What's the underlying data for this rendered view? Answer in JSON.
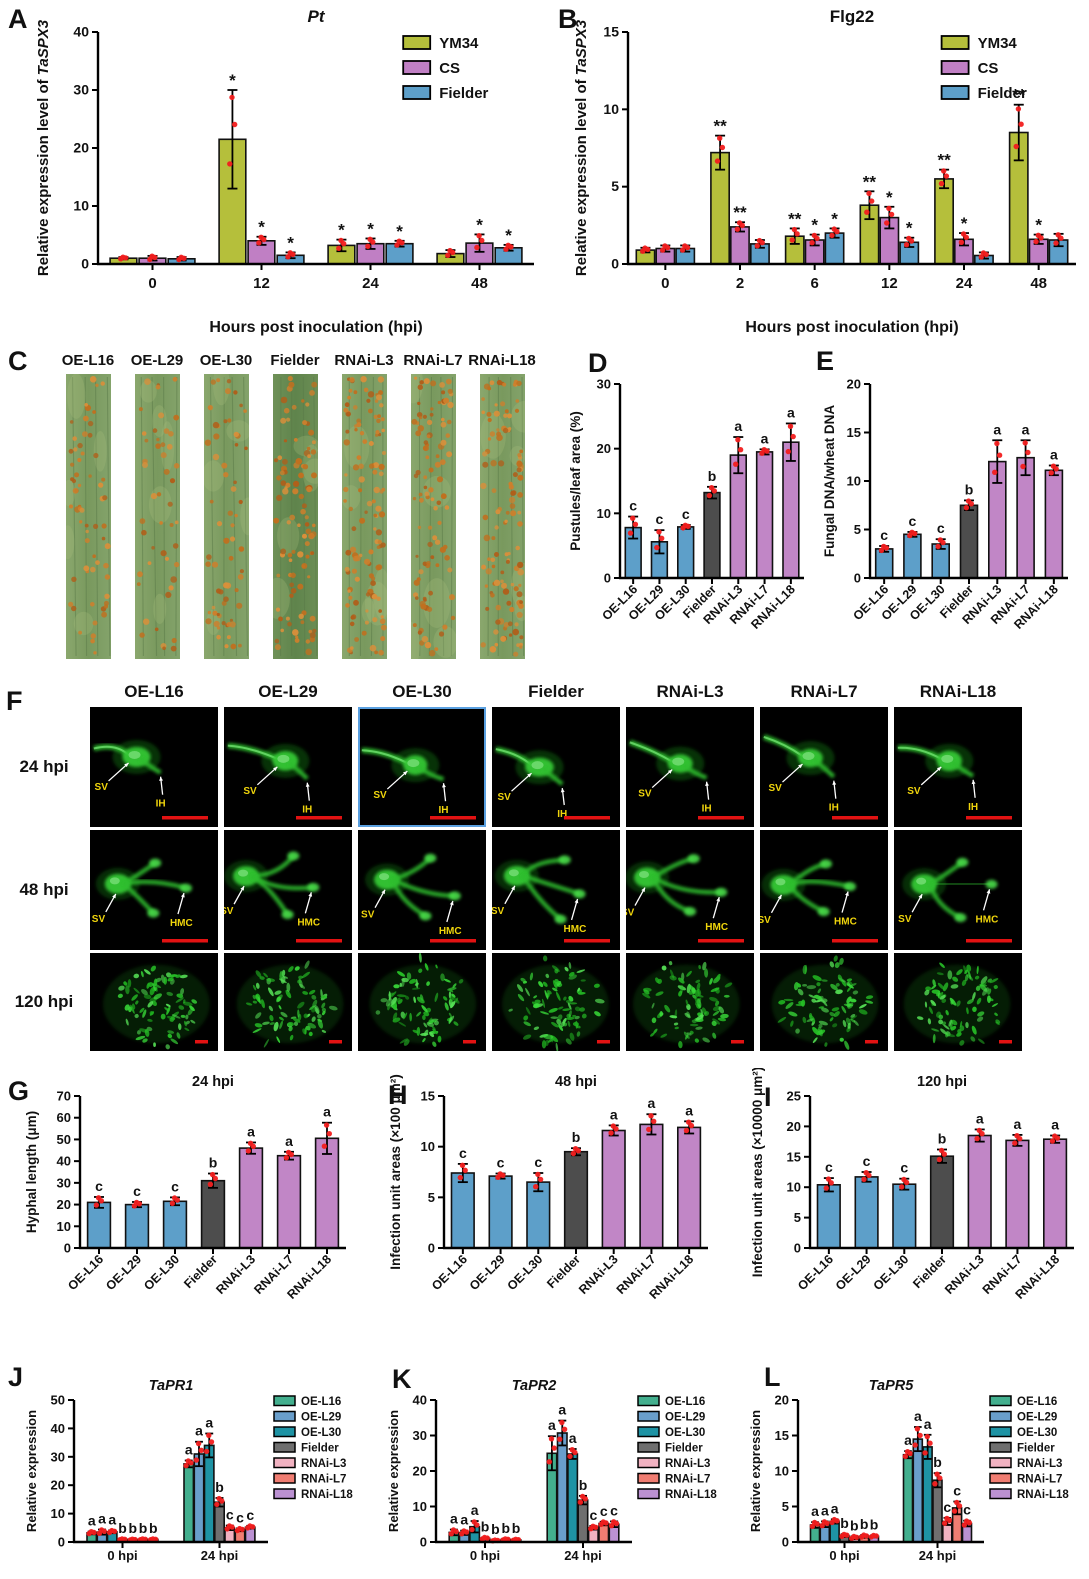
{
  "panels": {
    "a": "A",
    "b": "B",
    "c": "C",
    "d": "D",
    "e": "E",
    "f": "F",
    "g": "G",
    "h": "H",
    "i": "I",
    "j": "J",
    "k": "K",
    "l": "L"
  },
  "chart_data": [
    {
      "panel": "A",
      "type": "bar",
      "title": "*Pt*",
      "ylabel": "Relative expression level of *TaSPX3*",
      "xlabel": "Hours post inoculation (hpi)",
      "ylim": [
        0,
        40
      ],
      "yticks": [
        0,
        10,
        20,
        30,
        40
      ],
      "categories": [
        "0",
        "12",
        "24",
        "48"
      ],
      "legend": "inner",
      "x_rot": false,
      "sig_style": "star",
      "series": [
        {
          "name": "YM34",
          "color": "#b5bf3b",
          "values": [
            1.0,
            21.5,
            3.2,
            1.8
          ],
          "errors": [
            0.2,
            8.5,
            1.0,
            0.6
          ],
          "sig": [
            "",
            "*",
            "*",
            ""
          ]
        },
        {
          "name": "CS",
          "color": "#c07fc4",
          "values": [
            1.0,
            4.0,
            3.5,
            3.6
          ],
          "errors": [
            0.4,
            0.7,
            0.9,
            1.5
          ],
          "sig": [
            "",
            "*",
            "*",
            "*"
          ]
        },
        {
          "name": "Fielder",
          "color": "#5d9fc9",
          "values": [
            0.9,
            1.5,
            3.5,
            2.8
          ],
          "errors": [
            0.3,
            0.5,
            0.5,
            0.5
          ],
          "sig": [
            "",
            "*",
            "*",
            "*"
          ]
        }
      ]
    },
    {
      "panel": "B",
      "type": "bar",
      "title": "Flg22",
      "ylabel": "Relative expression level of *TaSPX3*",
      "xlabel": "Hours post inoculation (hpi)",
      "ylim": [
        0,
        15
      ],
      "yticks": [
        0,
        5,
        10,
        15
      ],
      "categories": [
        "0",
        "2",
        "6",
        "12",
        "24",
        "48"
      ],
      "legend": "inner",
      "x_rot": false,
      "sig_style": "star",
      "series": [
        {
          "name": "YM34",
          "color": "#b5bf3b",
          "values": [
            0.9,
            7.2,
            1.8,
            3.8,
            5.5,
            8.5
          ],
          "errors": [
            0.15,
            1.1,
            0.5,
            0.9,
            0.6,
            1.8
          ],
          "sig": [
            "",
            "**",
            "**",
            "**",
            "**",
            "**"
          ]
        },
        {
          "name": "CS",
          "color": "#c07fc4",
          "values": [
            1.0,
            2.4,
            1.55,
            3.0,
            1.6,
            1.6
          ],
          "errors": [
            0.2,
            0.3,
            0.35,
            0.7,
            0.4,
            0.3
          ],
          "sig": [
            "",
            "**",
            "*",
            "*",
            "*",
            "*"
          ]
        },
        {
          "name": "Fielder",
          "color": "#5d9fc9",
          "values": [
            1.0,
            1.3,
            2.0,
            1.4,
            0.55,
            1.55
          ],
          "errors": [
            0.2,
            0.25,
            0.3,
            0.3,
            0.2,
            0.4
          ],
          "sig": [
            "",
            "",
            "*",
            "*",
            "",
            ""
          ]
        }
      ]
    },
    {
      "panel": "D",
      "type": "bar",
      "title": "",
      "ylabel": "Pustules/leaf area (%)",
      "xlabel": "",
      "ylim": [
        0,
        30
      ],
      "yticks": [
        0,
        10,
        20,
        30
      ],
      "categories": [
        "OE-L16",
        "OE-L29",
        "OE-L30",
        "Fielder",
        "RNAi-L3",
        "RNAi-L7",
        "RNAi-L18"
      ],
      "legend": "none",
      "x_rot": true,
      "sig_style": "letter",
      "series": [
        {
          "name": "lines",
          "colors": [
            "#5d9fc9",
            "#5d9fc9",
            "#5d9fc9",
            "#4d4d4d",
            "#c186c6",
            "#c186c6",
            "#c186c6"
          ],
          "values": [
            7.8,
            5.6,
            7.9,
            13.2,
            19.0,
            19.5,
            21.0
          ],
          "errors": [
            1.7,
            1.8,
            0.3,
            0.9,
            2.8,
            0.4,
            2.9
          ],
          "sig": [
            "c",
            "c",
            "c",
            "b",
            "a",
            "a",
            "a"
          ]
        }
      ]
    },
    {
      "panel": "E",
      "type": "bar",
      "title": "",
      "ylabel": "Fungal DNA/wheat DNA",
      "xlabel": "",
      "ylim": [
        0,
        20
      ],
      "yticks": [
        0,
        5,
        10,
        15,
        20
      ],
      "categories": [
        "OE-L16",
        "OE-L29",
        "OE-L30",
        "Fielder",
        "RNAi-L3",
        "RNAi-L7",
        "RNAi-L18"
      ],
      "legend": "none",
      "x_rot": true,
      "sig_style": "letter",
      "series": [
        {
          "name": "lines",
          "colors": [
            "#5d9fc9",
            "#5d9fc9",
            "#5d9fc9",
            "#4d4d4d",
            "#c186c6",
            "#c186c6",
            "#c186c6"
          ],
          "values": [
            3.0,
            4.5,
            3.5,
            7.5,
            12.0,
            12.4,
            11.1
          ],
          "errors": [
            0.3,
            0.25,
            0.5,
            0.5,
            2.2,
            1.8,
            0.5
          ],
          "sig": [
            "c",
            "c",
            "c",
            "b",
            "a",
            "a",
            "a"
          ]
        }
      ]
    },
    {
      "panel": "G",
      "type": "bar",
      "title": "24 hpi",
      "ylabel": "Hyphal length (μm)",
      "xlabel": "",
      "ylim": [
        0,
        70
      ],
      "yticks": [
        0,
        10,
        20,
        30,
        40,
        50,
        60,
        70
      ],
      "categories": [
        "OE-L16",
        "OE-L29",
        "OE-L30",
        "Fielder",
        "RNAi-L3",
        "RNAi-L7",
        "RNAi-L18"
      ],
      "legend": "none",
      "x_rot": true,
      "sig_style": "letter",
      "series": [
        {
          "name": "lines",
          "colors": [
            "#5d9fc9",
            "#5d9fc9",
            "#5d9fc9",
            "#4d4d4d",
            "#c186c6",
            "#c186c6",
            "#c186c6"
          ],
          "values": [
            21.0,
            20.0,
            21.5,
            31.0,
            46.0,
            42.5,
            50.5
          ],
          "errors": [
            2.5,
            1.2,
            1.8,
            3.3,
            2.6,
            1.8,
            7.2
          ],
          "sig": [
            "c",
            "c",
            "c",
            "b",
            "a",
            "a",
            "a"
          ]
        }
      ]
    },
    {
      "panel": "H",
      "type": "bar",
      "title": "48 hpi",
      "ylabel": "Infection unit areas (×100 μm²)",
      "xlabel": "",
      "ylim": [
        0,
        15
      ],
      "yticks": [
        0,
        5,
        10,
        15
      ],
      "categories": [
        "OE-L16",
        "OE-L29",
        "OE-L30",
        "Fielder",
        "RNAi-L3",
        "RNAi-L7",
        "RNAi-L18"
      ],
      "legend": "none",
      "x_rot": true,
      "sig_style": "letter",
      "series": [
        {
          "name": "lines",
          "colors": [
            "#5d9fc9",
            "#5d9fc9",
            "#5d9fc9",
            "#4d4d4d",
            "#c186c6",
            "#c186c6",
            "#c186c6"
          ],
          "values": [
            7.4,
            7.1,
            6.5,
            9.5,
            11.6,
            12.2,
            11.9
          ],
          "errors": [
            0.9,
            0.25,
            0.9,
            0.35,
            0.5,
            1.0,
            0.6
          ],
          "sig": [
            "c",
            "c",
            "c",
            "b",
            "a",
            "a",
            "a"
          ]
        }
      ]
    },
    {
      "panel": "I",
      "type": "bar",
      "title": "120 hpi",
      "ylabel": "Infection unit areas (×10000 μm²)",
      "xlabel": "",
      "ylim": [
        0,
        25
      ],
      "yticks": [
        0,
        5,
        10,
        15,
        20,
        25
      ],
      "categories": [
        "OE-L16",
        "OE-L29",
        "OE-L30",
        "Fielder",
        "RNAi-L3",
        "RNAi-L7",
        "RNAi-L18"
      ],
      "legend": "none",
      "x_rot": true,
      "sig_style": "letter",
      "series": [
        {
          "name": "lines",
          "colors": [
            "#5d9fc9",
            "#5d9fc9",
            "#5d9fc9",
            "#4d4d4d",
            "#c186c6",
            "#c186c6",
            "#c186c6"
          ],
          "values": [
            10.4,
            11.7,
            10.5,
            15.1,
            18.5,
            17.7,
            17.9
          ],
          "errors": [
            1.1,
            0.8,
            0.9,
            1.1,
            1.0,
            0.9,
            0.6
          ],
          "sig": [
            "c",
            "c",
            "c",
            "b",
            "a",
            "a",
            "a"
          ]
        }
      ]
    },
    {
      "panel": "J",
      "type": "bar",
      "title": "*TaPR1*",
      "ylabel": "Relative expression",
      "xlabel": "",
      "ylim": [
        0,
        50
      ],
      "yticks": [
        0,
        10,
        20,
        30,
        40,
        50
      ],
      "categories": [
        "0 hpi",
        "24 hpi"
      ],
      "legend": "right",
      "x_rot": false,
      "sig_style": "letter",
      "series": [
        {
          "name": "OE-L16",
          "color": "#43af8e",
          "values": [
            3.2,
            27.5
          ],
          "errors": [
            0.5,
            1.2
          ],
          "sig": [
            "a",
            "a"
          ]
        },
        {
          "name": "OE-L29",
          "color": "#699ecb",
          "values": [
            3.5,
            31.0
          ],
          "errors": [
            0.9,
            4.3
          ],
          "sig": [
            "a",
            "a"
          ]
        },
        {
          "name": "OE-L30",
          "color": "#1e93a4",
          "values": [
            3.6,
            34.0
          ],
          "errors": [
            0.5,
            4.2
          ],
          "sig": [
            "a",
            "a"
          ]
        },
        {
          "name": "Fielder",
          "color": "#6f6f6f",
          "values": [
            0.9,
            14.0
          ],
          "errors": [
            0.2,
            1.5
          ],
          "sig": [
            "b",
            "b"
          ]
        },
        {
          "name": "RNAi-L3",
          "color": "#f1b2c1",
          "values": [
            0.8,
            5.0
          ],
          "errors": [
            0.2,
            0.8
          ],
          "sig": [
            "b",
            "c"
          ]
        },
        {
          "name": "RNAi-L7",
          "color": "#f07d72",
          "values": [
            0.9,
            4.3
          ],
          "errors": [
            0.2,
            0.5
          ],
          "sig": [
            "b",
            "c"
          ]
        },
        {
          "name": "RNAi-L18",
          "color": "#bb91d2",
          "values": [
            0.9,
            5.2
          ],
          "errors": [
            0.2,
            0.5
          ],
          "sig": [
            "b",
            "c"
          ]
        }
      ]
    },
    {
      "panel": "K",
      "type": "bar",
      "title": "*TaPR2*",
      "ylabel": "Relative expression",
      "xlabel": "",
      "ylim": [
        0,
        40
      ],
      "yticks": [
        0,
        10,
        20,
        30,
        40
      ],
      "categories": [
        "0 hpi",
        "24 hpi"
      ],
      "legend": "right",
      "x_rot": false,
      "sig_style": "letter",
      "series": [
        {
          "name": "OE-L16",
          "color": "#43af8e",
          "values": [
            2.7,
            25.0
          ],
          "errors": [
            0.8,
            4.8
          ],
          "sig": [
            "a",
            "a"
          ]
        },
        {
          "name": "OE-L29",
          "color": "#699ecb",
          "values": [
            2.6,
            30.7
          ],
          "errors": [
            0.6,
            3.5
          ],
          "sig": [
            "a",
            "a"
          ]
        },
        {
          "name": "OE-L30",
          "color": "#1e93a4",
          "values": [
            4.3,
            24.8
          ],
          "errors": [
            1.6,
            1.4
          ],
          "sig": [
            "a",
            "a"
          ]
        },
        {
          "name": "Fielder",
          "color": "#6f6f6f",
          "values": [
            1.0,
            11.8
          ],
          "errors": [
            0.3,
            1.2
          ],
          "sig": [
            "b",
            "b"
          ]
        },
        {
          "name": "RNAi-L3",
          "color": "#f1b2c1",
          "values": [
            0.4,
            4.0
          ],
          "errors": [
            0.15,
            0.5
          ],
          "sig": [
            "b",
            "c"
          ]
        },
        {
          "name": "RNAi-L7",
          "color": "#f07d72",
          "values": [
            0.7,
            5.2
          ],
          "errors": [
            0.2,
            0.5
          ],
          "sig": [
            "b",
            "c"
          ]
        },
        {
          "name": "RNAi-L18",
          "color": "#bb91d2",
          "values": [
            0.6,
            5.0
          ],
          "errors": [
            0.2,
            0.8
          ],
          "sig": [
            "b",
            "c"
          ]
        }
      ]
    },
    {
      "panel": "L",
      "type": "bar",
      "title": "*TaPR5*",
      "ylabel": "Relative expression",
      "xlabel": "",
      "ylim": [
        0,
        20
      ],
      "yticks": [
        0,
        5,
        10,
        15,
        20
      ],
      "categories": [
        "0 hpi",
        "24 hpi"
      ],
      "legend": "right",
      "x_rot": false,
      "sig_style": "letter",
      "series": [
        {
          "name": "OE-L16",
          "color": "#43af8e",
          "values": [
            2.4,
            12.3
          ],
          "errors": [
            0.4,
            0.5
          ],
          "sig": [
            "a",
            "a"
          ]
        },
        {
          "name": "OE-L29",
          "color": "#699ecb",
          "values": [
            2.5,
            14.5
          ],
          "errors": [
            0.4,
            1.7
          ],
          "sig": [
            "a",
            "a"
          ]
        },
        {
          "name": "OE-L30",
          "color": "#1e93a4",
          "values": [
            2.9,
            13.4
          ],
          "errors": [
            0.3,
            1.7
          ],
          "sig": [
            "a",
            "a"
          ]
        },
        {
          "name": "Fielder",
          "color": "#6f6f6f",
          "values": [
            0.9,
            8.7
          ],
          "errors": [
            0.2,
            1.0
          ],
          "sig": [
            "b",
            "b"
          ]
        },
        {
          "name": "RNAi-L3",
          "color": "#f1b2c1",
          "values": [
            0.6,
            2.9
          ],
          "errors": [
            0.2,
            0.5
          ],
          "sig": [
            "b",
            "c"
          ]
        },
        {
          "name": "RNAi-L7",
          "color": "#f07d72",
          "values": [
            0.8,
            4.8
          ],
          "errors": [
            0.2,
            0.9
          ],
          "sig": [
            "b",
            "c"
          ]
        },
        {
          "name": "RNAi-L18",
          "color": "#bb91d2",
          "values": [
            0.8,
            2.6
          ],
          "errors": [
            0.15,
            0.4
          ],
          "sig": [
            "b",
            "c"
          ]
        }
      ]
    }
  ],
  "leaf_panel": {
    "leaves": [
      {
        "label": "OE-L16",
        "pustule_density": "medium"
      },
      {
        "label": "OE-L29",
        "pustule_density": "low"
      },
      {
        "label": "OE-L30",
        "pustule_density": "medium"
      },
      {
        "label": "Fielder",
        "pustule_density": "high"
      },
      {
        "label": "RNAi-L3",
        "pustule_density": "very_high"
      },
      {
        "label": "RNAi-L7",
        "pustule_density": "high"
      },
      {
        "label": "RNAi-L18",
        "pustule_density": "very_high"
      }
    ],
    "leaf_color": "#7fa066",
    "pustule_color": "#c4752b"
  },
  "microscopy_panel": {
    "columns": [
      "OE-L16",
      "OE-L29",
      "OE-L30",
      "Fielder",
      "RNAi-L3",
      "RNAi-L7",
      "RNAi-L18"
    ],
    "rows": [
      {
        "label": "24 hpi",
        "markers": [
          "SV",
          "IH"
        ],
        "scalebar": "long"
      },
      {
        "label": "48 hpi",
        "markers": [
          "SV",
          "HMC"
        ],
        "scalebar": "long"
      },
      {
        "label": "120 hpi",
        "markers": [],
        "scalebar": "short"
      }
    ],
    "marker_color": "#f0d50c",
    "arrow_color": "#ffffff",
    "scalebar_color": "#e21212",
    "fluorescence_color": "#33cc33",
    "highlight_cell": {
      "row": 0,
      "col": 2,
      "border_color": "#5aa0e0"
    }
  },
  "error_bar_color": "#000000",
  "data_point_color": "#f21d1d"
}
